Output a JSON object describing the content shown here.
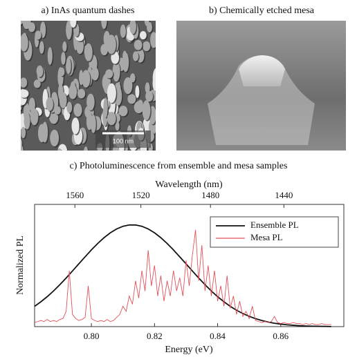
{
  "panels": [
    {
      "label": "a) InAs quantum dashes",
      "scale_bar": "100 nm"
    },
    {
      "label": "b) Chemically etched mesa"
    }
  ],
  "chart_data": {
    "type": "line",
    "title": "c) Photoluminescence from ensemble and mesa samples",
    "xlabel": "Energy  (eV)",
    "x2label": "Wavelength (nm)",
    "ylabel": "Normalized PL",
    "xlim": [
      0.782,
      0.88
    ],
    "xticks": [
      {
        "value": 0.8,
        "label": "0.80"
      },
      0.82,
      0.84,
      0.86
    ],
    "x2ticks": [
      1560,
      1520,
      1480,
      1440
    ],
    "ylim": [
      0,
      1.2
    ],
    "legend": "upper right",
    "series": [
      {
        "name": "Ensemble PL",
        "color": "#111111",
        "x": [
          0.782,
          0.784,
          0.786,
          0.788,
          0.79,
          0.792,
          0.794,
          0.796,
          0.798,
          0.8,
          0.802,
          0.804,
          0.806,
          0.808,
          0.81,
          0.812,
          0.814,
          0.816,
          0.818,
          0.82,
          0.822,
          0.824,
          0.826,
          0.828,
          0.83,
          0.832,
          0.834,
          0.836,
          0.838,
          0.84,
          0.842,
          0.844,
          0.846,
          0.848,
          0.85,
          0.852,
          0.854,
          0.856,
          0.858,
          0.86,
          0.862,
          0.864,
          0.866,
          0.868,
          0.87,
          0.872,
          0.874,
          0.876
        ],
        "values": [
          0.199,
          0.244,
          0.294,
          0.35,
          0.412,
          0.477,
          0.546,
          0.616,
          0.685,
          0.753,
          0.816,
          0.873,
          0.921,
          0.959,
          0.985,
          0.998,
          0.998,
          0.985,
          0.959,
          0.921,
          0.873,
          0.816,
          0.753,
          0.685,
          0.616,
          0.546,
          0.477,
          0.412,
          0.35,
          0.294,
          0.244,
          0.199,
          0.161,
          0.128,
          0.101,
          0.078,
          0.06,
          0.045,
          0.033,
          0.025,
          0.018,
          0.013,
          0.009,
          0.006,
          0.004,
          0.003,
          0.002,
          0.001
        ]
      },
      {
        "name": "Mesa PL",
        "color": "#e0505a",
        "x": [
          0.782,
          0.783,
          0.784,
          0.785,
          0.786,
          0.787,
          0.788,
          0.789,
          0.79,
          0.791,
          0.792,
          0.793,
          0.794,
          0.795,
          0.796,
          0.797,
          0.798,
          0.799,
          0.8,
          0.801,
          0.802,
          0.803,
          0.804,
          0.805,
          0.806,
          0.807,
          0.808,
          0.809,
          0.81,
          0.811,
          0.812,
          0.813,
          0.814,
          0.815,
          0.816,
          0.817,
          0.818,
          0.819,
          0.82,
          0.821,
          0.822,
          0.823,
          0.824,
          0.825,
          0.826,
          0.827,
          0.828,
          0.829,
          0.83,
          0.831,
          0.832,
          0.833,
          0.834,
          0.835,
          0.836,
          0.837,
          0.838,
          0.839,
          0.84,
          0.841,
          0.842,
          0.843,
          0.844,
          0.845,
          0.846,
          0.847,
          0.848,
          0.849,
          0.85,
          0.851,
          0.852,
          0.853,
          0.854,
          0.855,
          0.856,
          0.857,
          0.858,
          0.859,
          0.86,
          0.861,
          0.862,
          0.863,
          0.864,
          0.865,
          0.866,
          0.867,
          0.868,
          0.869,
          0.87,
          0.871,
          0.872,
          0.873,
          0.874,
          0.875,
          0.876
        ],
        "values": [
          0.04,
          0.05,
          0.06,
          0.05,
          0.07,
          0.05,
          0.06,
          0.05,
          0.07,
          0.08,
          0.15,
          0.55,
          0.12,
          0.08,
          0.06,
          0.07,
          0.09,
          0.4,
          0.08,
          0.06,
          0.05,
          0.06,
          0.05,
          0.07,
          0.05,
          0.06,
          0.09,
          0.12,
          0.2,
          0.15,
          0.3,
          0.22,
          0.45,
          0.28,
          0.55,
          0.35,
          0.75,
          0.4,
          0.6,
          0.3,
          0.5,
          0.25,
          0.45,
          0.3,
          0.55,
          0.35,
          0.48,
          0.3,
          0.65,
          0.4,
          0.7,
          0.95,
          0.45,
          0.8,
          0.35,
          0.6,
          0.3,
          0.55,
          0.25,
          0.4,
          0.2,
          0.5,
          0.18,
          0.3,
          0.12,
          0.25,
          0.1,
          0.15,
          0.08,
          0.2,
          0.06,
          0.05,
          0.04,
          0.05,
          0.04,
          0.05,
          0.1,
          0.04,
          0.03,
          0.04,
          0.03,
          0.03,
          0.04,
          0.03,
          0.03,
          0.02,
          0.03,
          0.02,
          0.03,
          0.02,
          0.02,
          0.03,
          0.02,
          0.02,
          0.02
        ]
      }
    ]
  }
}
